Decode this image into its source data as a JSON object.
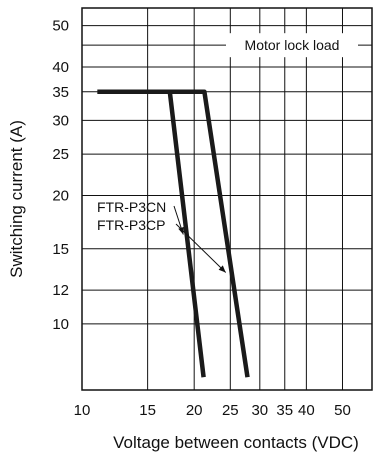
{
  "chart_data": {
    "type": "line",
    "xlabel": "Voltage between contacts (VDC)",
    "ylabel": "Switching current (A)",
    "x_scale": "log",
    "y_scale": "log",
    "xlim": [
      10,
      60
    ],
    "ylim": [
      7,
      55
    ],
    "grid": true,
    "x_ticks": [
      10,
      15,
      20,
      25,
      30,
      35,
      40,
      50
    ],
    "x_tick_labels": [
      "10",
      "15",
      "20",
      "25",
      "30",
      "35",
      "40",
      "50"
    ],
    "x_minor_gridlines": [
      60
    ],
    "y_ticks": [
      10,
      12,
      15,
      20,
      25,
      30,
      35,
      40,
      50
    ],
    "y_tick_labels": [
      "10",
      "12",
      "15",
      "20",
      "25",
      "30",
      "35",
      "40",
      "50"
    ],
    "y_minor_gridlines": [
      45
    ],
    "annotation": "Motor lock load",
    "series": [
      {
        "name": "FTR-P3CN",
        "x": [
          11,
          17.2,
          21.2
        ],
        "y": [
          35,
          35,
          7.5
        ]
      },
      {
        "name": "FTR-P3CP",
        "x": [
          11,
          21.3,
          27.8
        ],
        "y": [
          35,
          35,
          7.5
        ]
      }
    ],
    "series_label_anchors": [
      {
        "x": 18.7,
        "y": 16.2
      },
      {
        "x": 24.3,
        "y": 13.2
      }
    ]
  }
}
